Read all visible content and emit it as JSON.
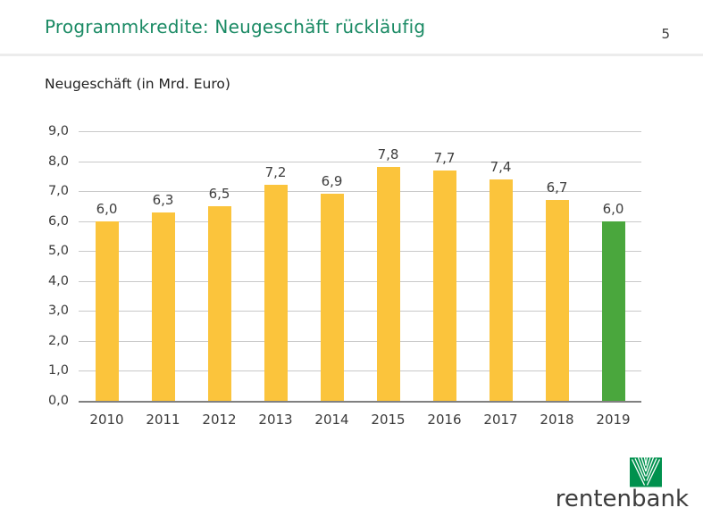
{
  "header": {
    "title": "Programmkredite: Neugeschäft rückläufig",
    "page_number": "5"
  },
  "chart_data": {
    "type": "bar",
    "title": "Neugeschäft (in Mrd. Euro)",
    "categories": [
      "2010",
      "2011",
      "2012",
      "2013",
      "2014",
      "2015",
      "2016",
      "2017",
      "2018",
      "2019"
    ],
    "values": [
      6.0,
      6.3,
      6.5,
      7.2,
      6.9,
      7.8,
      7.7,
      7.4,
      6.7,
      6.0
    ],
    "value_labels": [
      "6,0",
      "6,3",
      "6,5",
      "7,2",
      "6,9",
      "7,8",
      "7,7",
      "7,4",
      "6,7",
      "6,0"
    ],
    "ylim": [
      0,
      9
    ],
    "ytick_labels": [
      "0,0",
      "1,0",
      "2,0",
      "3,0",
      "4,0",
      "5,0",
      "6,0",
      "7,0",
      "8,0",
      "9,0"
    ],
    "grid": true,
    "legend": "none",
    "bar_color": "#FBC43C",
    "highlight_index": 9,
    "highlight_color": "#4AA73D"
  },
  "colors": {
    "title_green": "#1A8A64",
    "bar_yellow": "#FBC43C",
    "bar_green": "#4AA73D",
    "logo_green": "#00914E",
    "gridline": "#C9C9C9",
    "axis_line": "#808080"
  },
  "footer": {
    "brand": "rentenbank"
  }
}
